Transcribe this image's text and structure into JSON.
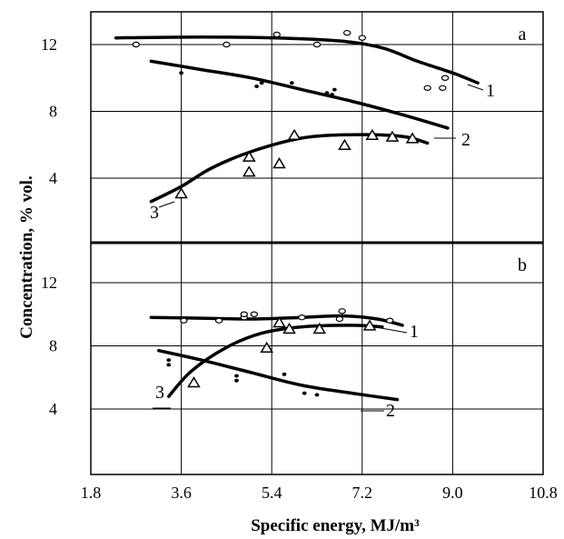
{
  "chart_data": {
    "type": "scatter",
    "xlabel": "Specific energy, MJ/m³",
    "ylabel": "Concentration, % vol.",
    "x_ticks": [
      "1.8",
      "3.6",
      "5.4",
      "7.2",
      "9.0",
      "10.8"
    ],
    "xlim": [
      1.8,
      10.8
    ],
    "grid": true,
    "panels": [
      {
        "label": "a",
        "ylim": [
          0,
          14.5
        ],
        "y_ticks": [
          "4",
          "8",
          "12"
        ],
        "series": [
          {
            "name": "1",
            "marker": "circle",
            "points": [
              [
                2.7,
                12.0
              ],
              [
                4.5,
                12.0
              ],
              [
                5.5,
                12.6
              ],
              [
                6.3,
                12.0
              ],
              [
                6.9,
                12.7
              ],
              [
                7.2,
                12.4
              ],
              [
                8.5,
                9.4
              ],
              [
                8.8,
                9.4
              ],
              [
                8.85,
                10.0
              ]
            ],
            "curve": [
              [
                2.3,
                12.4
              ],
              [
                4.0,
                12.45
              ],
              [
                5.5,
                12.4
              ],
              [
                6.8,
                12.2
              ],
              [
                7.6,
                11.8
              ],
              [
                8.3,
                11.0
              ],
              [
                9.0,
                10.3
              ],
              [
                9.5,
                9.7
              ]
            ]
          },
          {
            "name": "2",
            "marker": "dot",
            "points": [
              [
                3.6,
                10.3
              ],
              [
                5.1,
                9.5
              ],
              [
                5.2,
                9.7
              ],
              [
                5.8,
                9.7
              ],
              [
                6.5,
                9.1
              ],
              [
                6.6,
                9.0
              ],
              [
                6.65,
                9.3
              ]
            ],
            "curve": [
              [
                3.0,
                11.0
              ],
              [
                4.0,
                10.5
              ],
              [
                5.0,
                10.0
              ],
              [
                6.0,
                9.3
              ],
              [
                7.0,
                8.6
              ],
              [
                8.0,
                7.8
              ],
              [
                8.9,
                7.0
              ]
            ]
          },
          {
            "name": "3",
            "marker": "triangle",
            "points": [
              [
                3.6,
                3.1
              ],
              [
                4.95,
                5.3
              ],
              [
                4.95,
                4.4
              ],
              [
                5.55,
                4.9
              ],
              [
                5.85,
                6.6
              ],
              [
                6.85,
                6.0
              ],
              [
                7.4,
                6.6
              ],
              [
                7.8,
                6.5
              ],
              [
                8.2,
                6.4
              ]
            ],
            "curve": [
              [
                3.0,
                2.6
              ],
              [
                3.6,
                3.5
              ],
              [
                4.2,
                4.6
              ],
              [
                5.0,
                5.6
              ],
              [
                6.0,
                6.4
              ],
              [
                7.0,
                6.6
              ],
              [
                8.0,
                6.5
              ],
              [
                8.5,
                6.1
              ]
            ]
          }
        ]
      },
      {
        "label": "b",
        "ylim": [
          0,
          14.5
        ],
        "y_ticks": [
          "4",
          "8",
          "12"
        ],
        "series": [
          {
            "name": "1",
            "marker": "circle",
            "points": [
              [
                3.65,
                9.6
              ],
              [
                4.35,
                9.6
              ],
              [
                4.85,
                9.8
              ],
              [
                4.85,
                10.0
              ],
              [
                5.05,
                10.0
              ],
              [
                6.0,
                9.8
              ],
              [
                6.75,
                9.7
              ],
              [
                6.8,
                10.2
              ],
              [
                7.75,
                9.6
              ]
            ],
            "curve": [
              [
                3.0,
                9.8
              ],
              [
                4.0,
                9.75
              ],
              [
                5.0,
                9.7
              ],
              [
                6.0,
                9.8
              ],
              [
                6.8,
                9.9
              ],
              [
                7.5,
                9.7
              ],
              [
                8.0,
                9.3
              ]
            ]
          },
          {
            "name": "2",
            "marker": "dot",
            "points": [
              [
                3.35,
                6.8
              ],
              [
                3.35,
                7.1
              ],
              [
                4.7,
                5.8
              ],
              [
                4.7,
                6.1
              ],
              [
                5.65,
                6.2
              ],
              [
                6.05,
                5.0
              ],
              [
                6.3,
                4.9
              ]
            ],
            "curve": [
              [
                3.15,
                7.7
              ],
              [
                4.0,
                7.1
              ],
              [
                5.0,
                6.3
              ],
              [
                6.0,
                5.5
              ],
              [
                7.0,
                5.0
              ],
              [
                7.9,
                4.6
              ]
            ]
          },
          {
            "name": "3",
            "marker": "triangle",
            "points": [
              [
                3.85,
                5.7
              ],
              [
                5.3,
                7.9
              ],
              [
                5.55,
                9.5
              ],
              [
                5.75,
                9.1
              ],
              [
                6.35,
                9.1
              ],
              [
                7.35,
                9.3
              ]
            ],
            "curve": [
              [
                3.35,
                4.8
              ],
              [
                3.8,
                6.4
              ],
              [
                4.5,
                7.9
              ],
              [
                5.2,
                8.8
              ],
              [
                6.0,
                9.2
              ],
              [
                7.0,
                9.3
              ],
              [
                7.6,
                9.2
              ]
            ]
          }
        ]
      }
    ]
  }
}
